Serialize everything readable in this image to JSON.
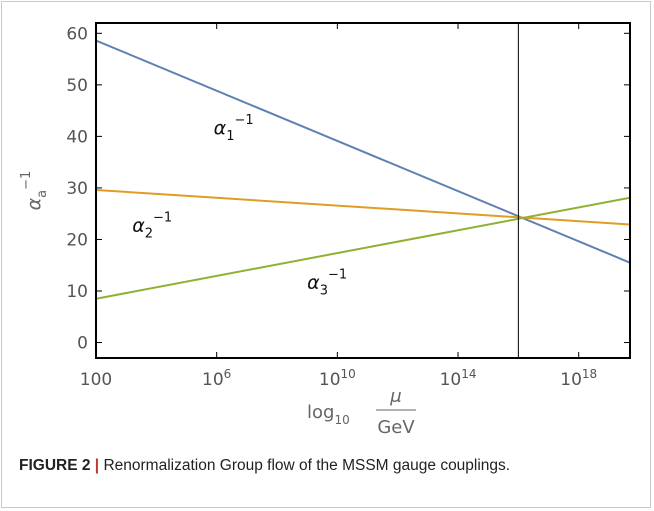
{
  "figure": {
    "label": "FIGURE 2",
    "separator": "|",
    "caption": "Renormalization Group flow of the MSSM gauge couplings."
  },
  "chart_data": {
    "type": "line",
    "xlabel": {
      "prefix": "log",
      "sub": "10",
      "numerator": "μ",
      "denominator": "GeV"
    },
    "ylabel": {
      "base": "α",
      "sub": "a",
      "sup": "−1"
    },
    "xscale": "log10",
    "xlim_log10": [
      2,
      19.7
    ],
    "ylim": [
      -3,
      62
    ],
    "xticks": [
      {
        "log10": 2,
        "base": "100",
        "exp": ""
      },
      {
        "log10": 6,
        "base": "10",
        "exp": "6"
      },
      {
        "log10": 10,
        "base": "10",
        "exp": "10"
      },
      {
        "log10": 14,
        "base": "10",
        "exp": "14"
      },
      {
        "log10": 18,
        "base": "10",
        "exp": "18"
      }
    ],
    "yticks": [
      0,
      10,
      20,
      30,
      40,
      50,
      60
    ],
    "grid": false,
    "vertical_line_log10": 16.0,
    "series": [
      {
        "name": "α1−1",
        "label_base": "α",
        "label_sub": "1",
        "label_sup": "−1",
        "color": "#5e81b5",
        "points": [
          [
            2,
            58.6
          ],
          [
            19.7,
            15.5
          ]
        ],
        "label_at": [
          5.9,
          40.5
        ]
      },
      {
        "name": "α2−1",
        "label_base": "α",
        "label_sub": "2",
        "label_sup": "−1",
        "color": "#e19c24",
        "points": [
          [
            2,
            29.6
          ],
          [
            19.7,
            22.9
          ]
        ],
        "label_at": [
          3.2,
          21.5
        ]
      },
      {
        "name": "α3−1",
        "label_base": "α",
        "label_sub": "3",
        "label_sup": "−1",
        "color": "#8fb032",
        "points": [
          [
            2,
            8.5
          ],
          [
            19.7,
            28.1
          ]
        ],
        "label_at": [
          9.0,
          10.5
        ]
      }
    ]
  }
}
